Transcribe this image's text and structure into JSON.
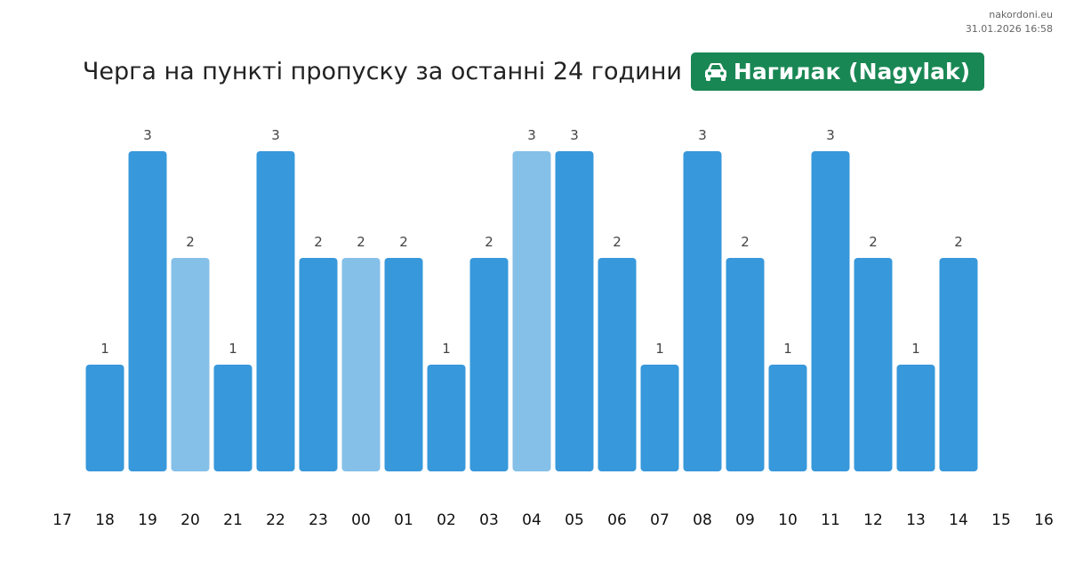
{
  "watermark": {
    "site": "nakordoni.eu",
    "datetime": "31.01.2026 16:58"
  },
  "header": {
    "title": "Черга на пункті пропуску за останні 24 години",
    "badge_label": "Нагилак (Nagylak)",
    "badge_icon": "car-icon",
    "badge_color": "#198754"
  },
  "chart_data": {
    "type": "bar",
    "categories": [
      "17",
      "18",
      "19",
      "20",
      "21",
      "22",
      "23",
      "00",
      "01",
      "02",
      "03",
      "04",
      "05",
      "06",
      "07",
      "08",
      "09",
      "10",
      "11",
      "12",
      "13",
      "14",
      "15",
      "16"
    ],
    "values": [
      null,
      1,
      3,
      2,
      1,
      3,
      2,
      2,
      2,
      1,
      2,
      3,
      3,
      2,
      1,
      3,
      2,
      1,
      3,
      2,
      1,
      2,
      null,
      null
    ],
    "highlighted": [
      "20",
      "00",
      "04"
    ],
    "ylim": [
      0,
      3
    ],
    "colors": {
      "bar": "#3798db",
      "bar_highlight": "#85c0e8",
      "value_label": "#444444",
      "tick_label": "#111111"
    },
    "grid": false
  }
}
